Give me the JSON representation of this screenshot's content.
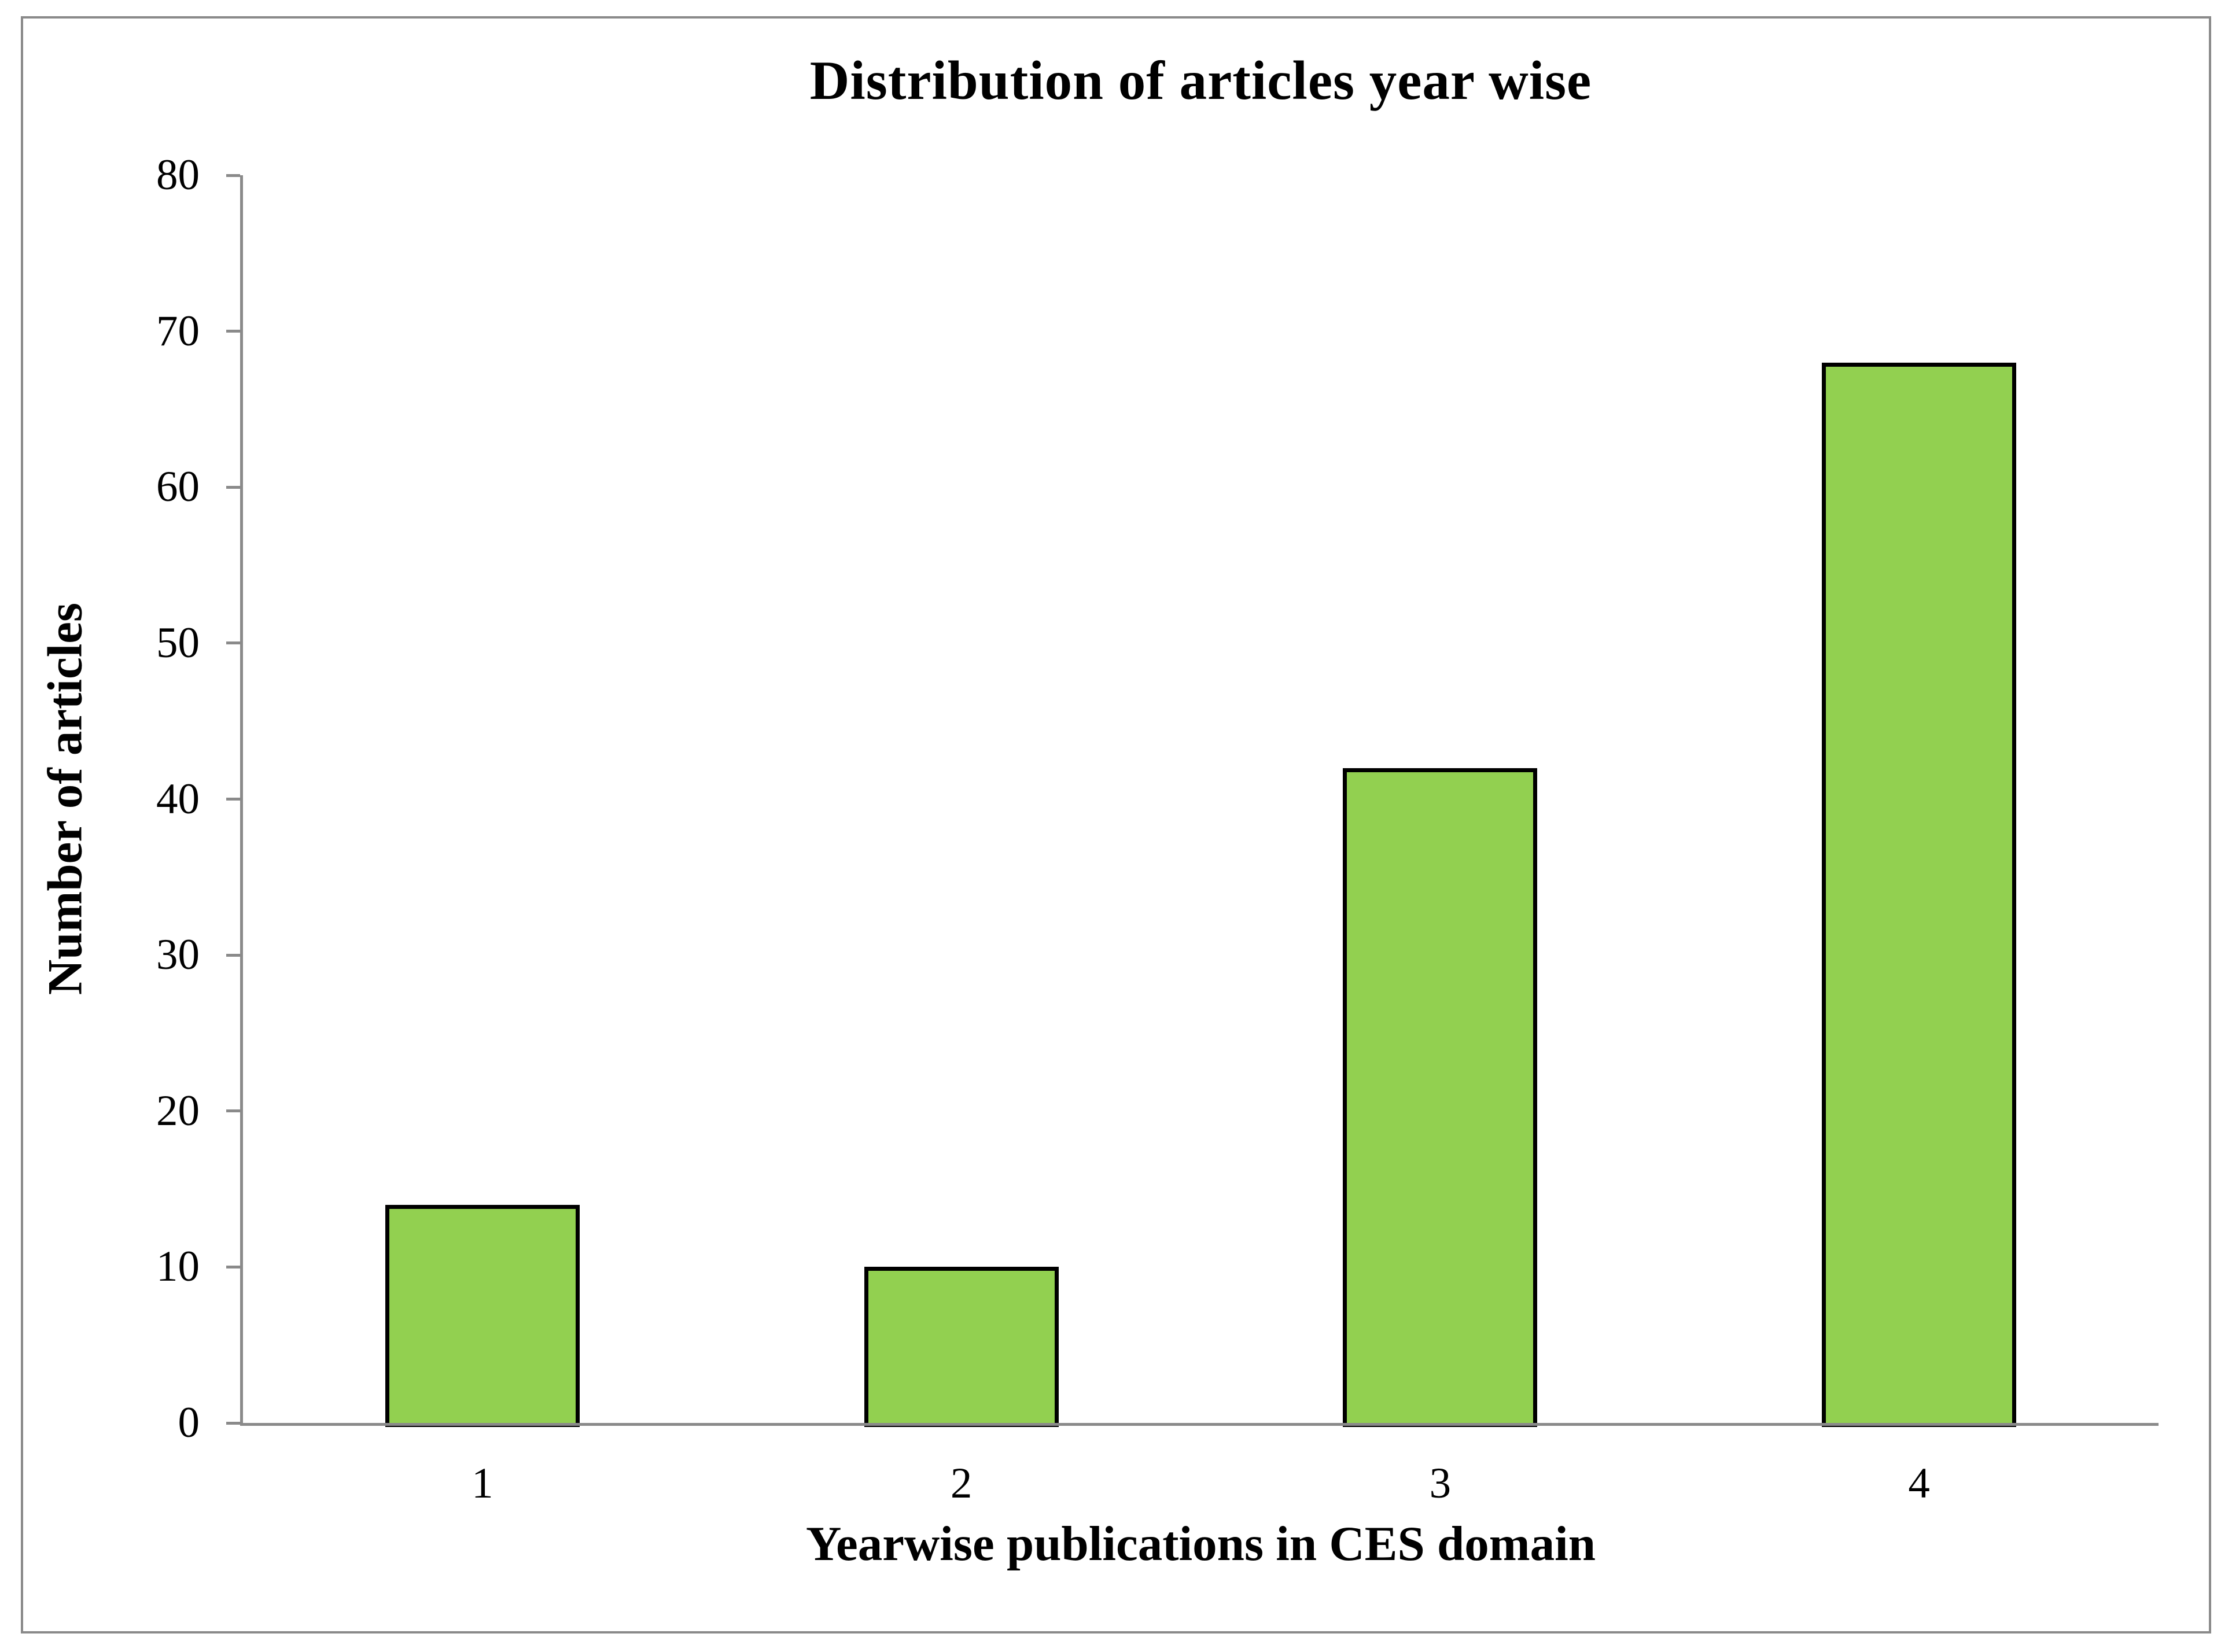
{
  "chart_data": {
    "type": "bar",
    "title": "Distribution of articles year wise",
    "categories": [
      "1",
      "2",
      "3",
      "4"
    ],
    "values": [
      14,
      10,
      42,
      68
    ],
    "xlabel": "Yearwise publications in CES domain",
    "ylabel": "Number of articles",
    "ylim": [
      0,
      80
    ],
    "ytick_step": 10,
    "grid": false,
    "legend": false,
    "bar_fill_color": "#92D050",
    "bar_border_color": "#000000",
    "axis_color": "#8a8a8a",
    "frame_border_color": "#8a8a8a",
    "background_color": "#ffffff",
    "text_color": "#000000"
  }
}
